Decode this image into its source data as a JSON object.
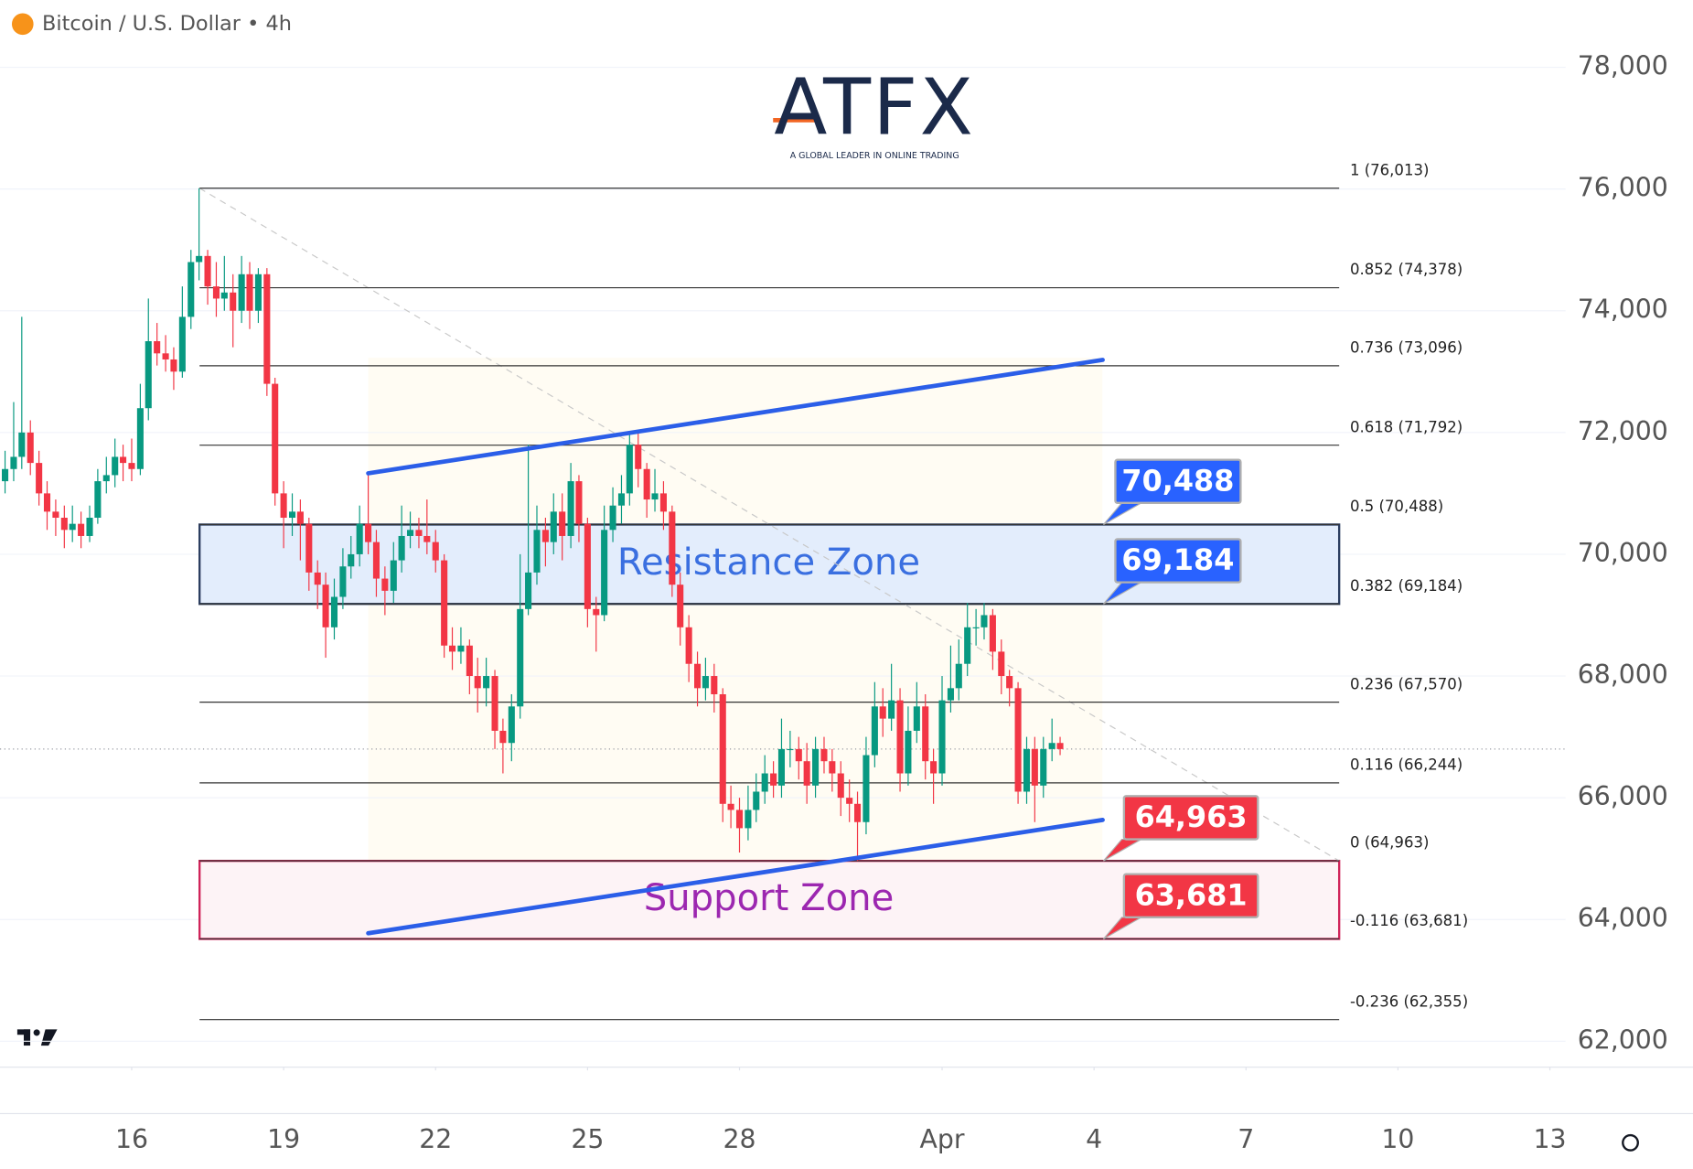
{
  "chart_data": {
    "type": "candlestick",
    "header": "Bitcoin / U.S. Dollar • 4h",
    "logo": {
      "title": "ATFX",
      "tagline": "A GLOBAL LEADER IN ONLINE TRADING"
    },
    "up_color": "#089981",
    "down_color": "#f23645",
    "xlim": [
      13.4,
      44.31
    ],
    "ylim": [
      61574,
      79082
    ],
    "yticks": [
      {
        "value": 62000,
        "label": "62,000"
      },
      {
        "value": 64000,
        "label": "64,000"
      },
      {
        "value": 66000,
        "label": "66,000"
      },
      {
        "value": 68000,
        "label": "68,000"
      },
      {
        "value": 70000,
        "label": "70,000"
      },
      {
        "value": 72000,
        "label": "72,000"
      },
      {
        "value": 74000,
        "label": "74,000"
      },
      {
        "value": 76000,
        "label": "76,000"
      },
      {
        "value": 78000,
        "label": "78,000"
      }
    ],
    "xticks": [
      16,
      19,
      22,
      25,
      28,
      {
        "value": 32,
        "label": "Apr"
      },
      {
        "value": 35,
        "label": "4"
      },
      {
        "value": 38,
        "label": "7"
      },
      {
        "value": 41,
        "label": "10"
      },
      {
        "value": 44,
        "label": "13"
      }
    ],
    "x": [
      13.5,
      13.67,
      13.83,
      14,
      14.17,
      14.33,
      14.5,
      14.67,
      14.83,
      15,
      15.17,
      15.33,
      15.5,
      15.67,
      15.83,
      16,
      16.17,
      16.33,
      16.5,
      16.67,
      16.83,
      17,
      17.17,
      17.33,
      17.5,
      17.67,
      17.83,
      18,
      18.17,
      18.33,
      18.5,
      18.67,
      18.83,
      19,
      19.17,
      19.33,
      19.5,
      19.67,
      19.83,
      20,
      20.17,
      20.33,
      20.5,
      20.67,
      20.83,
      21,
      21.17,
      21.33,
      21.5,
      21.67,
      21.83,
      22,
      22.17,
      22.33,
      22.5,
      22.67,
      22.83,
      23,
      23.17,
      23.33,
      23.5,
      23.67,
      23.83,
      24,
      24.17,
      24.33,
      24.5,
      24.67,
      24.83,
      25,
      25.17,
      25.33,
      25.5,
      25.67,
      25.83,
      26,
      26.17,
      26.33,
      26.5,
      26.67,
      26.83,
      27,
      27.17,
      27.33,
      27.5,
      27.67,
      27.83,
      28,
      28.17,
      28.33,
      28.5,
      28.67,
      28.83,
      29,
      29.17,
      29.33,
      29.5,
      29.67,
      29.83,
      30,
      30.17,
      30.33,
      30.5,
      30.67,
      30.83,
      31,
      31.17,
      31.33,
      31.5,
      31.67,
      31.83,
      32,
      32.17,
      32.33,
      32.5,
      32.67,
      32.83,
      33,
      33.17,
      33.33,
      33.5,
      33.67,
      33.83,
      34,
      34.17,
      34.33
    ],
    "open": [
      71200,
      71400,
      71600,
      72000,
      71500,
      71000,
      70700,
      70600,
      70400,
      70500,
      70300,
      70600,
      71200,
      71300,
      71600,
      71500,
      71400,
      72400,
      73500,
      73300,
      73200,
      73000,
      73900,
      74800,
      74900,
      74400,
      74200,
      74300,
      74000,
      74600,
      74000,
      74600,
      72800,
      71000,
      70600,
      70700,
      70500,
      69700,
      69500,
      68800,
      69300,
      69800,
      70000,
      70500,
      70200,
      69600,
      69400,
      69900,
      70300,
      70400,
      70300,
      70200,
      69900,
      68500,
      68400,
      68500,
      68000,
      67800,
      68000,
      67100,
      66900,
      67500,
      69100,
      69700,
      70400,
      70200,
      70700,
      70300,
      71200,
      70500,
      69100,
      69000,
      70400,
      70800,
      71000,
      71800,
      71400,
      70900,
      71000,
      70700,
      69500,
      68800,
      68200,
      67800,
      68000,
      67700,
      65900,
      65800,
      65500,
      65800,
      66100,
      66400,
      66200,
      66800,
      66800,
      66600,
      66200,
      66800,
      66600,
      66400,
      66000,
      65900,
      65600,
      66700,
      67500,
      67300,
      67600,
      66400,
      67100,
      67500,
      66600,
      66400,
      67600,
      67800,
      68200,
      68800,
      68800,
      69000,
      68400,
      68000,
      67800,
      66100,
      66800,
      66200,
      66800,
      66900
    ],
    "high": [
      71700,
      72500,
      73900,
      72200,
      71700,
      71200,
      70900,
      70800,
      70800,
      70700,
      70800,
      71400,
      71600,
      71900,
      71800,
      71900,
      72800,
      74200,
      73800,
      73600,
      73400,
      74400,
      75000,
      76013,
      75000,
      74800,
      74900,
      74600,
      74900,
      74800,
      74700,
      74700,
      72900,
      71200,
      71000,
      70900,
      70600,
      69900,
      69700,
      69600,
      70100,
      70300,
      70800,
      71300,
      70400,
      69800,
      70200,
      70800,
      70700,
      70600,
      70900,
      70400,
      70000,
      68800,
      68800,
      68600,
      68300,
      68300,
      68100,
      67300,
      67700,
      70000,
      71800,
      70800,
      70600,
      71000,
      71000,
      71500,
      71300,
      70600,
      69300,
      70800,
      71100,
      71300,
      72000,
      72000,
      71500,
      71400,
      71200,
      70800,
      69700,
      69000,
      68400,
      68300,
      68200,
      67800,
      66200,
      66000,
      66200,
      66400,
      66700,
      66600,
      67300,
      67100,
      67000,
      66900,
      67000,
      67000,
      66800,
      66600,
      66300,
      66100,
      67000,
      67900,
      67800,
      68200,
      67800,
      67500,
      67900,
      67700,
      66800,
      68000,
      68500,
      68600,
      69200,
      69100,
      69200,
      69100,
      68600,
      68100,
      67900,
      67000,
      67000,
      67000,
      67300,
      67000
    ],
    "low": [
      71000,
      71200,
      71400,
      71300,
      70800,
      70400,
      70300,
      70100,
      70200,
      70100,
      70200,
      70500,
      71000,
      71100,
      71200,
      71200,
      71300,
      72200,
      73100,
      73000,
      72700,
      72900,
      73700,
      74500,
      74100,
      73900,
      74000,
      73400,
      73800,
      73700,
      73800,
      72600,
      70800,
      70100,
      70300,
      69900,
      69400,
      69100,
      68300,
      68600,
      69100,
      69600,
      69800,
      70000,
      69300,
      69000,
      69200,
      69700,
      70100,
      70100,
      70000,
      69700,
      68300,
      68100,
      68200,
      67700,
      67400,
      67500,
      66800,
      66400,
      66600,
      67300,
      69000,
      69500,
      69800,
      70000,
      69900,
      70100,
      70200,
      68800,
      68400,
      68900,
      70200,
      70500,
      70800,
      71100,
      70600,
      70700,
      70400,
      69300,
      68500,
      67900,
      67500,
      67600,
      67400,
      65600,
      65500,
      65100,
      65300,
      65600,
      65900,
      66000,
      66000,
      66500,
      66300,
      65900,
      66000,
      66400,
      66100,
      65700,
      65600,
      64963,
      65400,
      66500,
      67000,
      67100,
      66100,
      66200,
      66900,
      66300,
      65900,
      66200,
      67400,
      67600,
      68000,
      68500,
      68600,
      68100,
      67700,
      67500,
      65900,
      65900,
      65600,
      66000,
      66600,
      66700
    ],
    "close": [
      71400,
      71600,
      72000,
      71500,
      71000,
      70700,
      70600,
      70400,
      70500,
      70300,
      70600,
      71200,
      71300,
      71600,
      71500,
      71400,
      72400,
      73500,
      73300,
      73200,
      73000,
      73900,
      74800,
      74900,
      74400,
      74200,
      74300,
      74000,
      74600,
      74000,
      74600,
      72800,
      71000,
      70600,
      70700,
      70500,
      69700,
      69500,
      68800,
      69300,
      69800,
      70000,
      70500,
      70200,
      69600,
      69400,
      69900,
      70300,
      70400,
      70300,
      70200,
      69900,
      68500,
      68400,
      68500,
      68000,
      67800,
      68000,
      67100,
      66900,
      67500,
      69100,
      69700,
      70400,
      70200,
      70700,
      70300,
      71200,
      70500,
      69100,
      69000,
      70400,
      70800,
      71000,
      71800,
      71400,
      70900,
      71000,
      70700,
      69500,
      68800,
      68200,
      67800,
      68000,
      67700,
      65900,
      65800,
      65500,
      65800,
      66100,
      66400,
      66200,
      66800,
      66800,
      66600,
      66200,
      66800,
      66600,
      66400,
      66000,
      65900,
      65600,
      66700,
      67500,
      67300,
      67600,
      66400,
      67100,
      67500,
      66600,
      66400,
      67600,
      67800,
      68200,
      68800,
      68800,
      69000,
      68400,
      68000,
      67800,
      66100,
      66800,
      66200,
      66800,
      66900,
      66800
    ],
    "fib": {
      "x": [
        17.34,
        39.84
      ],
      "levels": [
        {
          "value": 76013,
          "label": "1 (76,013)"
        },
        {
          "value": 74378,
          "label": "0.852 (74,378)"
        },
        {
          "value": 73096,
          "label": "0.736 (73,096)"
        },
        {
          "value": 71792,
          "label": "0.618 (71,792)"
        },
        {
          "value": 70488,
          "label": "0.5 (70,488)"
        },
        {
          "value": 69184,
          "label": "0.382 (69,184)"
        },
        {
          "value": 67570,
          "label": "0.236 (67,570)"
        },
        {
          "value": 66244,
          "label": "0.116 (66,244)"
        },
        {
          "value": 64963,
          "label": "0 (64,963)"
        },
        {
          "value": 63681,
          "label": "-0.116 (63,681)"
        },
        {
          "value": 62355,
          "label": "-0.236 (62,355)"
        }
      ]
    },
    "zones": [
      {
        "label": "Resistance Zone",
        "range": [
          69184,
          70488
        ],
        "color": "#3a6fe0",
        "fill": "#e3edfc",
        "border": "#2c3e60"
      },
      {
        "label": "Support Zone",
        "range": [
          63681,
          64963
        ],
        "color": "#9c27b0",
        "fill": "#fdf3f6",
        "border": "#d0245a"
      }
    ],
    "trendlines": [
      {
        "x": [
          20.67,
          35.17
        ],
        "y": [
          71330,
          73193
        ],
        "color": "#2b5ee8"
      },
      {
        "x": [
          20.67,
          35.17
        ],
        "y": [
          63774,
          65636
        ],
        "color": "#2b5ee8"
      }
    ],
    "callouts": [
      {
        "value": 70488,
        "label": "70,488",
        "color": "#2962ff"
      },
      {
        "value": 69184,
        "label": "69,184",
        "color": "#2962ff"
      },
      {
        "value": 64963,
        "label": "64,963",
        "color": "#f23645"
      },
      {
        "value": 63681,
        "label": "63,681",
        "color": "#f23645"
      }
    ]
  }
}
